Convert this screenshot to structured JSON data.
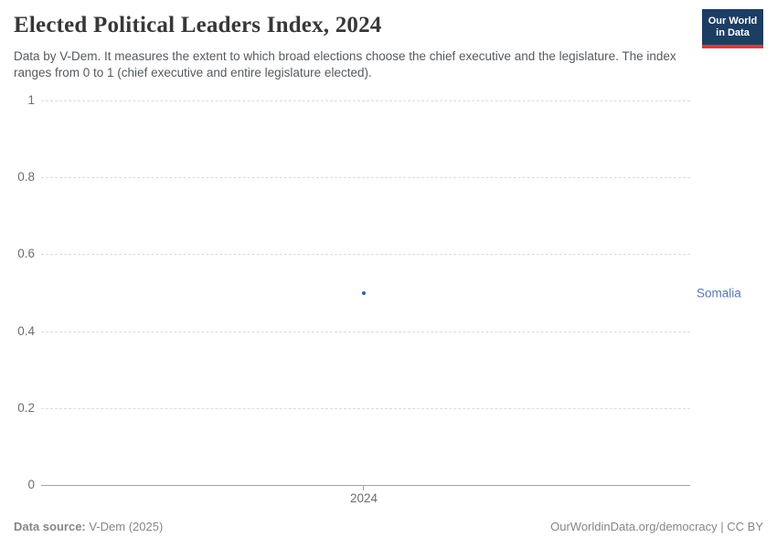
{
  "header": {
    "title": "Elected Political Leaders Index, 2024",
    "subtitle": "Data by V-Dem. It measures the extent to which broad elections choose the chief executive and the legislature. The index ranges from 0 to 1 (chief executive and entire legislature elected).",
    "logo": {
      "line1": "Our World",
      "line2": "in Data",
      "bg_color": "#1d3d63",
      "accent_color": "#cf3e3e"
    }
  },
  "chart": {
    "y_ticks": [
      "1",
      "0.8",
      "0.6",
      "0.4",
      "0.2",
      "0"
    ],
    "x_tick": "2024",
    "entity_label": "Somalia",
    "point_color": "#3360a9",
    "entity_label_color": "#5878b3",
    "gridline_color": "#dcdcdc",
    "axis_line_color": "#a3a3a3"
  },
  "chart_data": {
    "type": "scatter",
    "title": "Elected Political Leaders Index, 2024",
    "subtitle": "Data by V-Dem. It measures the extent to which broad elections choose the chief executive and the legislature. The index ranges from 0 to 1 (chief executive and entire legislature elected).",
    "series": [
      {
        "name": "Somalia",
        "x": [
          2024
        ],
        "values": [
          0.5
        ]
      }
    ],
    "xlabel": "",
    "ylabel": "",
    "x_tick_labels": [
      "2024"
    ],
    "y_tick_labels": [
      1,
      0.8,
      0.6,
      0.4,
      0.2,
      0
    ],
    "ylim": [
      0,
      1
    ],
    "grid": "horizontal-dashed",
    "legend_position": "right-of-point"
  },
  "footer": {
    "source_label": "Data source:",
    "source_value": "V-Dem (2025)",
    "right_text": "OurWorldinData.org/democracy | CC BY"
  }
}
